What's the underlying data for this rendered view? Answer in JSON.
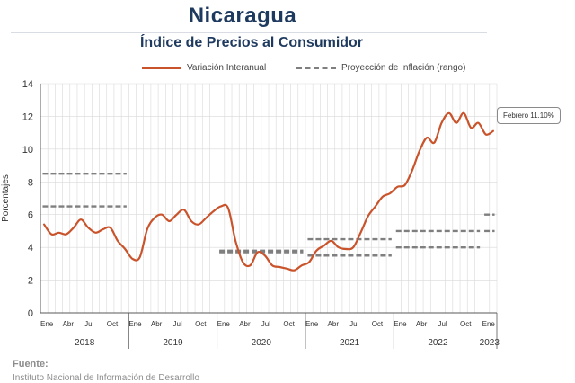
{
  "header": {
    "title": "Nicaragua",
    "subtitle": "Índice de Precios al Consumidor"
  },
  "legend": {
    "series_label": "Variación Interanual",
    "projection_label": "Proyección de Inflación (rango)"
  },
  "callout": "Febrero 11.10%",
  "footer": {
    "source_label": "Fuente:",
    "source_text": "Instituto Nacional de Información de Desarrollo"
  },
  "colors": {
    "series": "#c9532b",
    "projection": "#7f7f7f",
    "grid": "#d9d9d9",
    "title": "#1f3a5f"
  },
  "chart_data": {
    "type": "line",
    "ylabel": "Porcentajes",
    "ylim": [
      0,
      14
    ],
    "yticks": [
      0,
      2,
      4,
      6,
      8,
      10,
      12,
      14
    ],
    "grid": true,
    "legend_position": "top",
    "month_tick_labels": [
      "Ene",
      "Abr",
      "Jul",
      "Oct"
    ],
    "years": [
      "2018",
      "2019",
      "2020",
      "2021",
      "2022",
      "2023"
    ],
    "x_start": "2018-01",
    "series": [
      {
        "name": "Variación Interanual",
        "values": [
          5.4,
          4.8,
          4.9,
          4.8,
          5.2,
          5.7,
          5.2,
          4.9,
          5.1,
          5.2,
          4.4,
          3.9,
          3.3,
          3.4,
          5.1,
          5.8,
          6.0,
          5.6,
          6.0,
          6.3,
          5.6,
          5.4,
          5.8,
          6.2,
          6.5,
          6.4,
          4.4,
          3.1,
          2.9,
          3.7,
          3.5,
          2.9,
          2.8,
          2.7,
          2.6,
          2.9,
          3.1,
          3.8,
          4.1,
          4.4,
          4.0,
          3.9,
          4.0,
          4.9,
          5.9,
          6.5,
          7.1,
          7.3,
          7.7,
          7.8,
          8.7,
          9.9,
          10.7,
          10.4,
          11.6,
          12.2,
          11.6,
          12.2,
          11.3,
          11.6,
          10.9,
          11.1
        ]
      }
    ],
    "projection_ranges": [
      {
        "year": "2018",
        "low": 6.5,
        "high": 8.5
      },
      {
        "year": "2020",
        "low": 3.7,
        "high": 3.8
      },
      {
        "year": "2021",
        "low": 3.5,
        "high": 4.5
      },
      {
        "year": "2022",
        "low": 4.0,
        "high": 5.0
      },
      {
        "year": "2023",
        "low": 5.0,
        "high": 6.0
      }
    ]
  }
}
